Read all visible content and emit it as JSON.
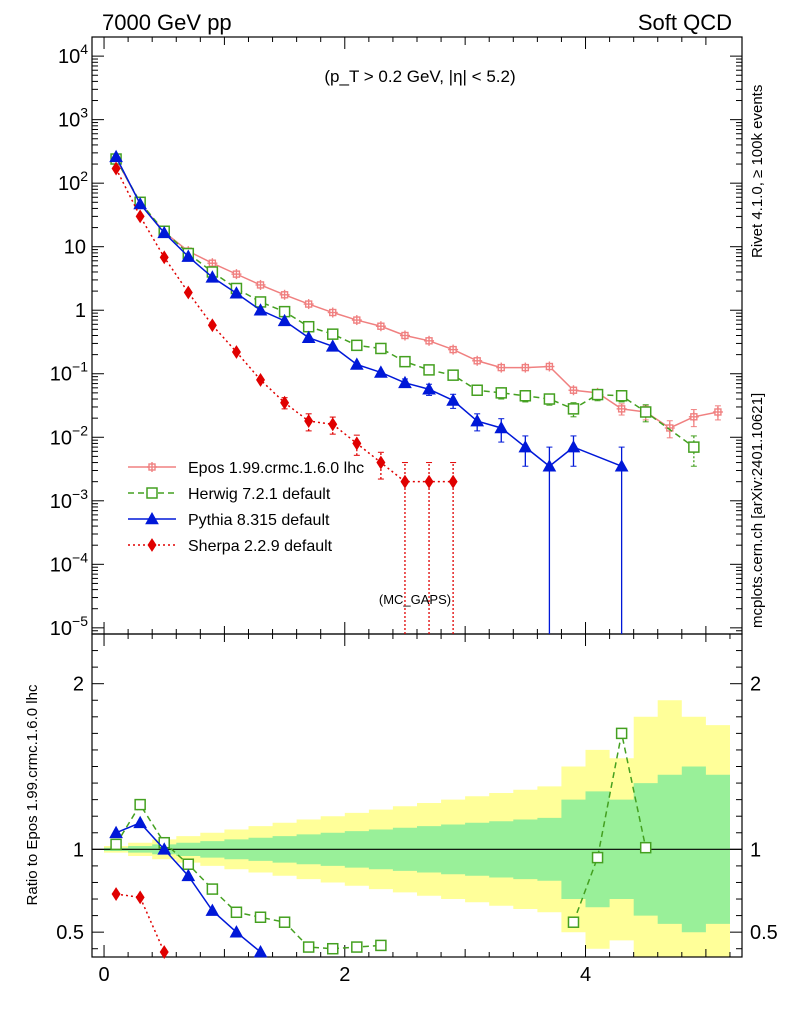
{
  "chart_data": {
    "type": "line",
    "header_left": "7000 GeV pp",
    "header_right": "Soft QCD",
    "cut_label": "(p_T > 0.2 GeV, |η| < 5.2)",
    "side_label_top": "Rivet 4.1.0, ≥ 100k events",
    "side_label_bottom": "mcplots.cern.ch [arXiv:2401.10621]",
    "analysis_label": "(MC_GAPS)",
    "upper": {
      "yscale": "log",
      "ylim": [
        8e-06,
        20000
      ],
      "ytick_labels": [
        "10^4",
        "10^3",
        "10^2",
        "10",
        "1",
        "10^-1",
        "10^-2",
        "10^-3",
        "10^-4",
        "10^-5"
      ],
      "ytick_values": [
        10000,
        1000,
        100,
        10,
        1,
        0.1,
        0.01,
        0.001,
        0.0001,
        1e-05
      ]
    },
    "lower": {
      "ylabel": "Ratio to Epos 1.99.crmc.1.6.0 lhc",
      "ylim": [
        0.35,
        2.3
      ],
      "ytick_labels": [
        "0.5",
        "1",
        "2"
      ],
      "ytick_values": [
        0.5,
        1,
        2
      ]
    },
    "xlim": [
      -0.1,
      5.3
    ],
    "xtick_labels": [
      "0",
      "2",
      "4"
    ],
    "xtick_values": [
      0,
      2,
      4
    ],
    "legend": [
      {
        "label": "Epos 1.99.crmc.1.6.0 lhc",
        "color": "#f08080",
        "marker": "cross",
        "dash": ""
      },
      {
        "label": "Herwig 7.2.1 default",
        "color": "#44a020",
        "marker": "open-square",
        "dash": "6,4"
      },
      {
        "label": "Pythia 8.315 default",
        "color": "#0018d8",
        "marker": "triangle",
        "dash": ""
      },
      {
        "label": "Sherpa 2.2.9 default",
        "color": "#e00000",
        "marker": "diamond",
        "dash": "2,3"
      }
    ],
    "series": [
      {
        "name": "Epos",
        "color": "#f08080",
        "marker": "cross",
        "dash": "",
        "x": [
          0.1,
          0.3,
          0.5,
          0.7,
          0.9,
          1.1,
          1.3,
          1.5,
          1.7,
          1.9,
          2.1,
          2.3,
          2.5,
          2.7,
          2.9,
          3.1,
          3.3,
          3.5,
          3.7,
          3.9,
          4.1,
          4.3,
          4.5,
          4.7,
          4.9,
          5.1
        ],
        "y": [
          240,
          48,
          17,
          8.5,
          5.5,
          3.7,
          2.5,
          1.75,
          1.25,
          0.92,
          0.7,
          0.56,
          0.4,
          0.33,
          0.24,
          0.16,
          0.125,
          0.125,
          0.13,
          0.055,
          0.05,
          0.028,
          0.025,
          0.014,
          0.021,
          0.025
        ],
        "err": [
          0,
          0,
          0,
          0,
          0,
          0,
          0,
          0,
          0,
          0,
          0,
          0,
          0,
          0,
          0,
          0,
          0,
          0,
          0,
          0,
          0,
          0.2,
          0.25,
          0.3,
          0.3,
          0.25
        ]
      },
      {
        "name": "Herwig",
        "color": "#44a020",
        "marker": "open-square",
        "dash": "6,4",
        "x": [
          0.1,
          0.3,
          0.5,
          0.7,
          0.9,
          1.1,
          1.3,
          1.5,
          1.7,
          1.9,
          2.1,
          2.3,
          2.5,
          2.7,
          2.9,
          3.1,
          3.3,
          3.5,
          3.7,
          3.9,
          4.1,
          4.3,
          4.5,
          4.9
        ],
        "y": [
          240,
          50,
          17.5,
          7.8,
          4,
          2.2,
          1.35,
          0.95,
          0.55,
          0.42,
          0.28,
          0.25,
          0.155,
          0.115,
          0.095,
          0.055,
          0.05,
          0.045,
          0.04,
          0.028,
          0.047,
          0.045,
          0.025,
          0.007
        ],
        "err": [
          0,
          0,
          0,
          0,
          0,
          0,
          0,
          0,
          0,
          0,
          0,
          0,
          0,
          0,
          0,
          0.15,
          0.2,
          0.2,
          0.2,
          0.25,
          0.2,
          0.2,
          0.3,
          0.5
        ]
      },
      {
        "name": "Pythia",
        "color": "#0018d8",
        "marker": "triangle",
        "dash": "",
        "x": [
          0.1,
          0.3,
          0.5,
          0.7,
          0.9,
          1.1,
          1.3,
          1.5,
          1.7,
          1.9,
          2.1,
          2.3,
          2.5,
          2.7,
          2.9,
          3.1,
          3.3,
          3.5,
          3.7,
          3.9,
          4.3
        ],
        "y": [
          260,
          47,
          16.5,
          7,
          3.3,
          1.85,
          1.0,
          0.68,
          0.37,
          0.27,
          0.14,
          0.105,
          0.072,
          0.057,
          0.038,
          0.018,
          0.014,
          0.007,
          0.0035,
          0.007,
          0.0035
        ],
        "err": [
          0,
          0,
          0,
          0,
          0,
          0,
          0,
          0,
          0,
          0,
          0,
          0,
          0.15,
          0.2,
          0.25,
          0.3,
          0.4,
          0.5,
          1,
          0.5,
          1
        ]
      },
      {
        "name": "Sherpa",
        "color": "#e00000",
        "marker": "diamond",
        "dash": "2,3",
        "x": [
          0.1,
          0.3,
          0.5,
          0.7,
          0.9,
          1.1,
          1.3,
          1.5,
          1.7,
          1.9,
          2.1,
          2.3,
          2.5,
          2.7,
          2.9
        ],
        "y": [
          170,
          30,
          6.8,
          1.9,
          0.58,
          0.22,
          0.08,
          0.035,
          0.018,
          0.016,
          0.008,
          0.004,
          0.002,
          0.002,
          0.002
        ],
        "err": [
          0,
          0,
          0,
          0,
          0,
          0,
          0,
          0.2,
          0.3,
          0.3,
          0.35,
          0.45,
          1,
          1,
          1
        ]
      }
    ],
    "ratio_series": [
      {
        "name": "Herwig",
        "x": [
          0.1,
          0.3,
          0.5,
          0.7,
          0.9,
          1.1,
          1.3,
          1.5,
          1.7,
          1.9,
          2.1,
          2.3,
          3.9,
          4.1,
          4.3,
          4.5
        ],
        "y": [
          1.03,
          1.27,
          1.04,
          0.91,
          0.76,
          0.62,
          0.59,
          0.56,
          0.41,
          0.4,
          0.41,
          0.42,
          0.56,
          0.95,
          1.7,
          1.01
        ]
      },
      {
        "name": "Pythia",
        "x": [
          0.1,
          0.3,
          0.5,
          0.7,
          0.9,
          1.1,
          1.3
        ],
        "y": [
          1.1,
          1.16,
          1.0,
          0.84,
          0.63,
          0.5,
          0.38
        ]
      },
      {
        "name": "Sherpa",
        "x": [
          0.1,
          0.3,
          0.5
        ],
        "y": [
          0.73,
          0.71,
          0.38
        ]
      }
    ],
    "ratio_band": {
      "x": [
        0.1,
        0.3,
        0.5,
        0.7,
        0.9,
        1.1,
        1.3,
        1.5,
        1.7,
        1.9,
        2.1,
        2.3,
        2.5,
        2.7,
        2.9,
        3.1,
        3.3,
        3.5,
        3.7,
        3.9,
        4.1,
        4.3,
        4.5,
        4.7,
        4.9,
        5.1
      ],
      "inner": [
        0.01,
        0.02,
        0.03,
        0.04,
        0.05,
        0.06,
        0.07,
        0.08,
        0.09,
        0.1,
        0.11,
        0.12,
        0.13,
        0.14,
        0.15,
        0.16,
        0.17,
        0.18,
        0.19,
        0.3,
        0.35,
        0.3,
        0.4,
        0.45,
        0.5,
        0.45
      ],
      "outer": [
        0.02,
        0.04,
        0.06,
        0.08,
        0.1,
        0.12,
        0.14,
        0.16,
        0.18,
        0.2,
        0.22,
        0.24,
        0.26,
        0.28,
        0.3,
        0.32,
        0.34,
        0.36,
        0.38,
        0.5,
        0.6,
        0.55,
        0.8,
        0.9,
        0.8,
        0.75
      ]
    }
  }
}
